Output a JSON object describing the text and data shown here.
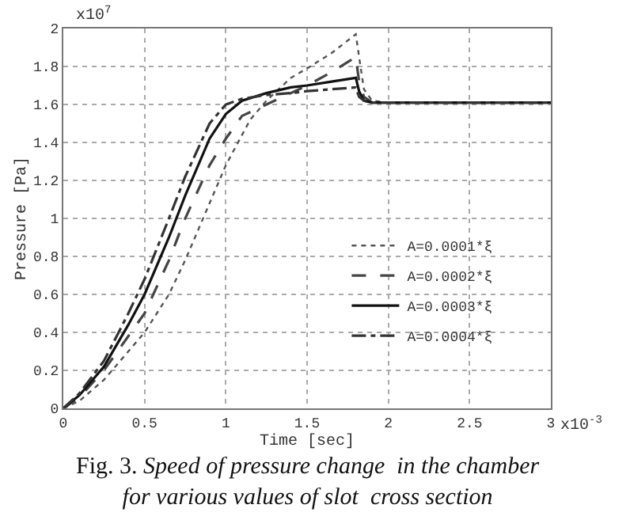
{
  "chart_data": {
    "type": "line",
    "title": "Fig. 3.",
    "subtitle": "Speed of pressure change  in the chamber\nfor various values of slot  cross section",
    "xlabel": "Time [sec]",
    "ylabel": "Pressure [Pa]",
    "annotations": [
      "x10$^{7}$",
      "x10$^{-3}$"
    ],
    "xlim": [
      0,
      3
    ],
    "xticks": [
      0,
      0.5,
      1,
      1.5,
      2,
      2.5,
      3
    ],
    "ylim": [
      0,
      2
    ],
    "yticks": [
      0,
      0.2,
      0.4,
      0.6,
      0.8,
      1,
      1.2,
      1.4,
      1.6,
      1.8,
      2
    ],
    "grid": true,
    "legend": "right",
    "marker": "none",
    "series": [
      {
        "name": "A=0.0001*ξ",
        "color": "#555555",
        "line_style": "dotted",
        "x": [
          0,
          0.1,
          0.25,
          0.4,
          0.5,
          0.65,
          0.75,
          0.9,
          1.0,
          1.15,
          1.25,
          1.4,
          1.5,
          1.65,
          1.8,
          1.82,
          1.85,
          1.9,
          2.0,
          3.0
        ],
        "values": [
          0,
          0.04,
          0.15,
          0.3,
          0.4,
          0.6,
          0.78,
          1.08,
          1.28,
          1.52,
          1.62,
          1.74,
          1.79,
          1.87,
          1.97,
          1.85,
          1.68,
          1.62,
          1.61,
          1.61
        ]
      },
      {
        "name": "A=0.0002*ξ",
        "color": "#444444",
        "line_style": "dashed",
        "x": [
          0,
          0.1,
          0.25,
          0.4,
          0.5,
          0.65,
          0.75,
          0.9,
          1.0,
          1.1,
          1.25,
          1.4,
          1.5,
          1.65,
          1.8,
          1.82,
          1.85,
          1.9,
          2.0,
          3.0
        ],
        "values": [
          0,
          0.06,
          0.2,
          0.38,
          0.5,
          0.78,
          1.0,
          1.28,
          1.42,
          1.54,
          1.6,
          1.66,
          1.7,
          1.77,
          1.85,
          1.72,
          1.64,
          1.61,
          1.61,
          1.61
        ]
      },
      {
        "name": "A=0.0003*ξ",
        "color": "#111111",
        "line_style": "solid",
        "x": [
          0,
          0.1,
          0.25,
          0.4,
          0.5,
          0.65,
          0.75,
          0.9,
          1.0,
          1.1,
          1.25,
          1.4,
          1.5,
          1.65,
          1.8,
          1.82,
          1.85,
          1.9,
          2.0,
          3.0
        ],
        "values": [
          0,
          0.07,
          0.22,
          0.44,
          0.6,
          0.9,
          1.12,
          1.42,
          1.55,
          1.62,
          1.66,
          1.69,
          1.7,
          1.72,
          1.74,
          1.67,
          1.62,
          1.61,
          1.61,
          1.61
        ]
      },
      {
        "name": "A=0.0004*ξ",
        "color": "#333333",
        "line_style": "dashdot",
        "x": [
          0,
          0.1,
          0.25,
          0.4,
          0.5,
          0.65,
          0.75,
          0.9,
          1.0,
          1.1,
          1.25,
          1.4,
          1.5,
          1.65,
          1.8,
          1.82,
          1.85,
          1.9,
          2.0,
          3.0
        ],
        "values": [
          0,
          0.08,
          0.25,
          0.5,
          0.68,
          1.0,
          1.22,
          1.5,
          1.6,
          1.63,
          1.65,
          1.66,
          1.67,
          1.68,
          1.69,
          1.64,
          1.62,
          1.61,
          1.61,
          1.61
        ]
      }
    ]
  }
}
